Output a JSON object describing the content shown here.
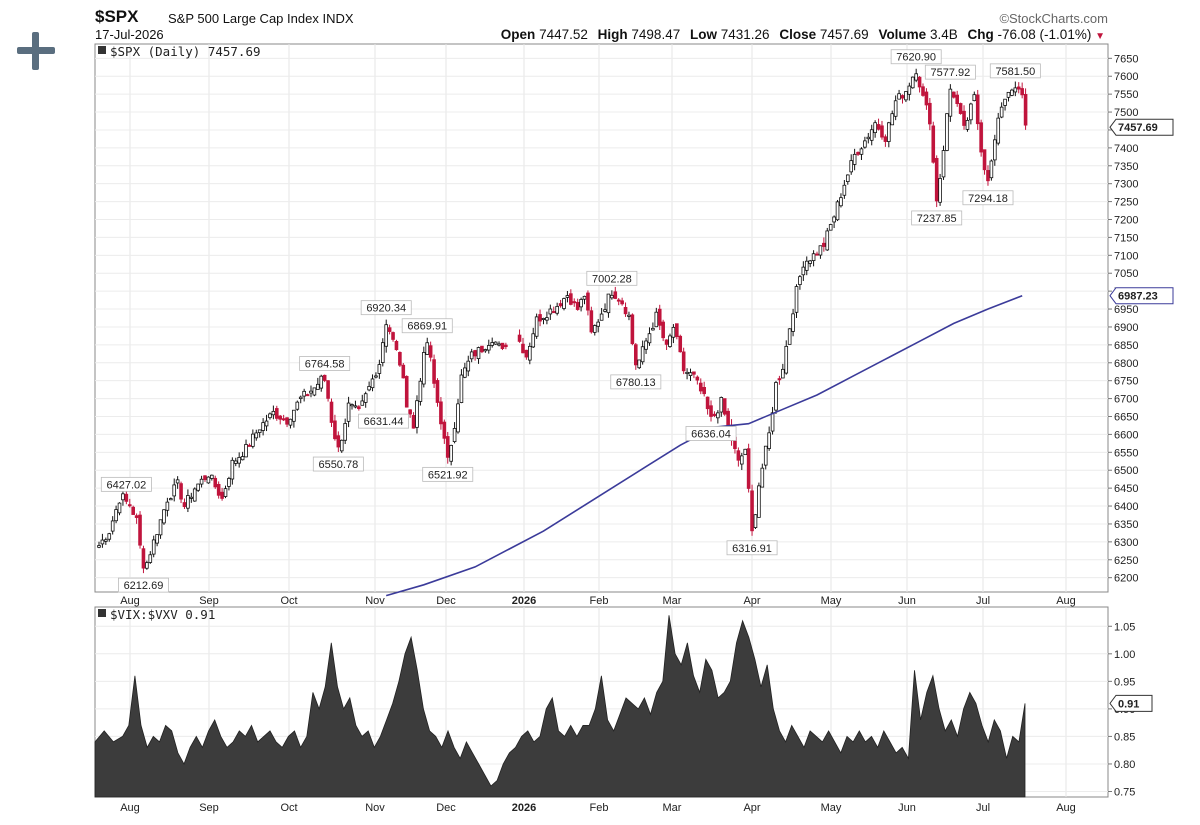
{
  "header": {
    "symbol": "$SPX",
    "name": "S&P 500 Large Cap Index",
    "exchange": "INDX",
    "date": "17-Jul-2026",
    "brand": "©StockCharts.com",
    "open_label": "Open",
    "open": "7447.52",
    "high_label": "High",
    "high": "7498.47",
    "low_label": "Low",
    "low": "7431.26",
    "close_label": "Close",
    "close": "7457.69",
    "volume_label": "Volume",
    "volume": "3.4B",
    "chg_label": "Chg",
    "chg": "-76.08 (-1.01%)",
    "chg_arrow": "▼"
  },
  "colors": {
    "up": "#111111",
    "down": "#c0143c",
    "ma": "#3b3b9a",
    "area": "#3c3c3c"
  },
  "chart_data": [
    {
      "type": "candlestick",
      "legend": "$SPX (Daily) 7457.69",
      "ylim": [
        6160,
        7690
      ],
      "yticks": [
        6200,
        6250,
        6300,
        6350,
        6400,
        6450,
        6500,
        6550,
        6600,
        6650,
        6700,
        6750,
        6800,
        6850,
        6900,
        6950,
        7000,
        7050,
        7100,
        7150,
        7200,
        7250,
        7300,
        7350,
        7400,
        7450,
        7500,
        7550,
        7600,
        7650
      ],
      "x_labels": [
        "Aug",
        "Sep",
        "Oct",
        "Nov",
        "Dec",
        "2026",
        "Feb",
        "Mar",
        "Apr",
        "May",
        "Jun",
        "Jul",
        "Aug"
      ],
      "last_value": "7457.69",
      "ma_value": "6987.23",
      "price_path": [
        [
          0,
          6290
        ],
        [
          3,
          6330
        ],
        [
          6,
          6420
        ],
        [
          8,
          6427
        ],
        [
          11,
          6360
        ],
        [
          13,
          6212.69
        ],
        [
          17,
          6330
        ],
        [
          20,
          6420
        ],
        [
          23,
          6460
        ],
        [
          25,
          6400
        ],
        [
          28,
          6450
        ],
        [
          32,
          6490
        ],
        [
          36,
          6420
        ],
        [
          39,
          6520
        ],
        [
          43,
          6560
        ],
        [
          47,
          6620
        ],
        [
          51,
          6660
        ],
        [
          55,
          6640
        ],
        [
          59,
          6700
        ],
        [
          63,
          6730
        ],
        [
          66,
          6764.58
        ],
        [
          68,
          6640
        ],
        [
          70,
          6550.78
        ],
        [
          73,
          6680
        ],
        [
          76,
          6660
        ],
        [
          79,
          6730
        ],
        [
          82,
          6800
        ],
        [
          84,
          6920.34
        ],
        [
          86,
          6860
        ],
        [
          88,
          6800
        ],
        [
          90,
          6690
        ],
        [
          92,
          6631.44
        ],
        [
          94,
          6760
        ],
        [
          96,
          6869.91
        ],
        [
          98,
          6740
        ],
        [
          100,
          6640
        ],
        [
          102,
          6521.92
        ],
        [
          104,
          6630
        ],
        [
          106,
          6760
        ],
        [
          109,
          6820
        ],
        [
          112,
          6840
        ],
        [
          115,
          6870
        ],
        [
          118,
          6830
        ],
        [
          120,
          6880
        ],
        [
          122,
          6880
        ],
        [
          125,
          6820
        ],
        [
          128,
          6920
        ],
        [
          131,
          6940
        ],
        [
          134,
          6960
        ],
        [
          137,
          6990
        ],
        [
          140,
          6950
        ],
        [
          142,
          6990
        ],
        [
          144,
          6880
        ],
        [
          146,
          6920
        ],
        [
          148,
          6960
        ],
        [
          150,
          7002.28
        ],
        [
          153,
          6970
        ],
        [
          155,
          6930
        ],
        [
          157,
          6780.13
        ],
        [
          160,
          6860
        ],
        [
          163,
          6930
        ],
        [
          166,
          6840
        ],
        [
          168,
          6900
        ],
        [
          171,
          6780
        ],
        [
          174,
          6760
        ],
        [
          177,
          6700
        ],
        [
          179,
          6636.04
        ],
        [
          182,
          6690
        ],
        [
          184,
          6620
        ],
        [
          187,
          6520
        ],
        [
          189,
          6560
        ],
        [
          191,
          6316.91
        ],
        [
          193,
          6460
        ],
        [
          196,
          6600
        ],
        [
          198,
          6740
        ],
        [
          200,
          6790
        ],
        [
          202,
          6900
        ],
        [
          204,
          7000
        ],
        [
          206,
          7080
        ],
        [
          209,
          7100
        ],
        [
          212,
          7130
        ],
        [
          215,
          7210
        ],
        [
          218,
          7300
        ],
        [
          221,
          7380
        ],
        [
          224,
          7420
        ],
        [
          227,
          7470
        ],
        [
          230,
          7430
        ],
        [
          233,
          7530
        ],
        [
          236,
          7560
        ],
        [
          239,
          7620.9
        ],
        [
          241,
          7540
        ],
        [
          243,
          7480
        ],
        [
          245,
          7237.85
        ],
        [
          247,
          7400
        ],
        [
          249,
          7577.92
        ],
        [
          251,
          7520
        ],
        [
          253,
          7450
        ],
        [
          256,
          7540
        ],
        [
          258,
          7400
        ],
        [
          260,
          7294.18
        ],
        [
          262,
          7420
        ],
        [
          264,
          7520
        ],
        [
          266,
          7560
        ],
        [
          268,
          7581.5
        ],
        [
          270,
          7540
        ],
        [
          271,
          7457.69
        ]
      ],
      "annotations": [
        {
          "text": "6427.02",
          "i": 8,
          "v": 6427.02,
          "pos": "above"
        },
        {
          "text": "6212.69",
          "i": 13,
          "v": 6212.69,
          "pos": "below"
        },
        {
          "text": "6764.58",
          "i": 66,
          "v": 6764.58,
          "pos": "above"
        },
        {
          "text": "6550.78",
          "i": 70,
          "v": 6550.78,
          "pos": "below"
        },
        {
          "text": "6920.34",
          "i": 84,
          "v": 6920.34,
          "pos": "above"
        },
        {
          "text": "6869.91",
          "i": 96,
          "v": 6869.91,
          "pos": "above"
        },
        {
          "text": "6631.44",
          "i": 92,
          "v": 6631.44,
          "pos": "left"
        },
        {
          "text": "6521.92",
          "i": 102,
          "v": 6521.92,
          "pos": "below"
        },
        {
          "text": "7002.28",
          "i": 150,
          "v": 7002.28,
          "pos": "above"
        },
        {
          "text": "6780.13",
          "i": 157,
          "v": 6780.13,
          "pos": "below"
        },
        {
          "text": "6636.04",
          "i": 179,
          "v": 6636.04,
          "pos": "below"
        },
        {
          "text": "6316.91",
          "i": 191,
          "v": 6316.91,
          "pos": "below"
        },
        {
          "text": "7620.90",
          "i": 239,
          "v": 7620.9,
          "pos": "above"
        },
        {
          "text": "7577.92",
          "i": 249,
          "v": 7577.92,
          "pos": "above"
        },
        {
          "text": "7237.85",
          "i": 245,
          "v": 7237.85,
          "pos": "below"
        },
        {
          "text": "7294.18",
          "i": 260,
          "v": 7294.18,
          "pos": "below"
        },
        {
          "text": "7581.50",
          "i": 268,
          "v": 7581.5,
          "pos": "above"
        }
      ],
      "ma_path": [
        [
          84,
          6150
        ],
        [
          95,
          6180
        ],
        [
          110,
          6230
        ],
        [
          120,
          6280
        ],
        [
          130,
          6330
        ],
        [
          140,
          6390
        ],
        [
          150,
          6450
        ],
        [
          160,
          6510
        ],
        [
          170,
          6570
        ],
        [
          180,
          6620
        ],
        [
          190,
          6630
        ],
        [
          200,
          6670
        ],
        [
          210,
          6710
        ],
        [
          220,
          6760
        ],
        [
          230,
          6810
        ],
        [
          240,
          6860
        ],
        [
          250,
          6910
        ],
        [
          260,
          6950
        ],
        [
          270,
          6987.23
        ]
      ]
    },
    {
      "type": "area",
      "legend": "$VIX:$VXV 0.91",
      "ylim": [
        0.74,
        1.085
      ],
      "yticks": [
        0.75,
        0.8,
        0.85,
        0.9,
        0.95,
        1.0,
        1.05
      ],
      "ytick_labels": [
        "0.75",
        "0.80",
        "0.85",
        "0.90",
        "0.95",
        "1.00",
        "1.05"
      ],
      "last_value": "0.91",
      "values": [
        [
          0,
          0.84
        ],
        [
          3,
          0.86
        ],
        [
          6,
          0.84
        ],
        [
          9,
          0.85
        ],
        [
          11,
          0.87
        ],
        [
          13,
          0.96
        ],
        [
          15,
          0.87
        ],
        [
          17,
          0.83
        ],
        [
          19,
          0.85
        ],
        [
          21,
          0.84
        ],
        [
          23,
          0.87
        ],
        [
          25,
          0.86
        ],
        [
          27,
          0.82
        ],
        [
          29,
          0.8
        ],
        [
          31,
          0.83
        ],
        [
          33,
          0.85
        ],
        [
          35,
          0.83
        ],
        [
          37,
          0.86
        ],
        [
          39,
          0.88
        ],
        [
          41,
          0.85
        ],
        [
          43,
          0.83
        ],
        [
          45,
          0.84
        ],
        [
          47,
          0.86
        ],
        [
          49,
          0.85
        ],
        [
          51,
          0.87
        ],
        [
          53,
          0.84
        ],
        [
          55,
          0.85
        ],
        [
          57,
          0.86
        ],
        [
          59,
          0.84
        ],
        [
          61,
          0.83
        ],
        [
          63,
          0.85
        ],
        [
          65,
          0.86
        ],
        [
          67,
          0.83
        ],
        [
          69,
          0.85
        ],
        [
          71,
          0.93
        ],
        [
          73,
          0.9
        ],
        [
          75,
          0.94
        ],
        [
          77,
          1.02
        ],
        [
          79,
          0.94
        ],
        [
          81,
          0.9
        ],
        [
          83,
          0.92
        ],
        [
          85,
          0.87
        ],
        [
          87,
          0.85
        ],
        [
          89,
          0.86
        ],
        [
          91,
          0.83
        ],
        [
          93,
          0.85
        ],
        [
          95,
          0.88
        ],
        [
          97,
          0.91
        ],
        [
          99,
          0.95
        ],
        [
          101,
          1.0
        ],
        [
          103,
          1.03
        ],
        [
          105,
          0.97
        ],
        [
          107,
          0.9
        ],
        [
          109,
          0.86
        ],
        [
          111,
          0.85
        ],
        [
          113,
          0.83
        ],
        [
          115,
          0.86
        ],
        [
          117,
          0.83
        ],
        [
          119,
          0.81
        ],
        [
          121,
          0.84
        ],
        [
          123,
          0.82
        ],
        [
          125,
          0.8
        ],
        [
          127,
          0.78
        ],
        [
          129,
          0.76
        ],
        [
          131,
          0.77
        ],
        [
          133,
          0.8
        ],
        [
          135,
          0.82
        ],
        [
          137,
          0.83
        ],
        [
          139,
          0.85
        ],
        [
          141,
          0.86
        ],
        [
          143,
          0.84
        ],
        [
          145,
          0.85
        ],
        [
          147,
          0.9
        ],
        [
          149,
          0.92
        ],
        [
          151,
          0.86
        ],
        [
          153,
          0.85
        ],
        [
          155,
          0.87
        ],
        [
          157,
          0.85
        ],
        [
          159,
          0.87
        ],
        [
          161,
          0.87
        ],
        [
          163,
          0.9
        ],
        [
          165,
          0.96
        ],
        [
          167,
          0.88
        ],
        [
          169,
          0.86
        ],
        [
          171,
          0.89
        ],
        [
          173,
          0.92
        ],
        [
          175,
          0.91
        ],
        [
          177,
          0.9
        ],
        [
          179,
          0.92
        ],
        [
          181,
          0.89
        ],
        [
          183,
          0.93
        ],
        [
          185,
          0.95
        ],
        [
          187,
          1.07
        ],
        [
          189,
          1.0
        ],
        [
          191,
          0.98
        ],
        [
          193,
          1.02
        ],
        [
          195,
          0.96
        ],
        [
          197,
          0.93
        ],
        [
          199,
          0.99
        ],
        [
          201,
          0.97
        ],
        [
          203,
          0.92
        ],
        [
          205,
          0.93
        ],
        [
          207,
          0.95
        ],
        [
          209,
          1.02
        ],
        [
          211,
          1.06
        ],
        [
          213,
          1.03
        ],
        [
          215,
          0.99
        ],
        [
          217,
          0.94
        ],
        [
          219,
          0.98
        ],
        [
          221,
          0.9
        ],
        [
          223,
          0.86
        ],
        [
          225,
          0.84
        ],
        [
          227,
          0.87
        ],
        [
          229,
          0.85
        ],
        [
          231,
          0.83
        ],
        [
          233,
          0.86
        ],
        [
          235,
          0.85
        ],
        [
          237,
          0.84
        ],
        [
          239,
          0.86
        ],
        [
          241,
          0.84
        ],
        [
          243,
          0.82
        ],
        [
          245,
          0.85
        ],
        [
          247,
          0.84
        ],
        [
          249,
          0.86
        ],
        [
          251,
          0.84
        ],
        [
          253,
          0.85
        ],
        [
          255,
          0.83
        ],
        [
          257,
          0.86
        ],
        [
          259,
          0.84
        ],
        [
          261,
          0.82
        ],
        [
          263,
          0.83
        ],
        [
          265,
          0.81
        ],
        [
          267,
          0.97
        ],
        [
          269,
          0.88
        ],
        [
          271,
          0.93
        ],
        [
          273,
          0.96
        ],
        [
          275,
          0.9
        ],
        [
          277,
          0.86
        ],
        [
          279,
          0.88
        ],
        [
          281,
          0.85
        ],
        [
          283,
          0.9
        ],
        [
          285,
          0.93
        ],
        [
          287,
          0.91
        ],
        [
          289,
          0.87
        ],
        [
          291,
          0.84
        ],
        [
          293,
          0.88
        ],
        [
          295,
          0.86
        ],
        [
          297,
          0.81
        ],
        [
          299,
          0.85
        ],
        [
          301,
          0.84
        ],
        [
          303,
          0.91
        ]
      ]
    }
  ]
}
